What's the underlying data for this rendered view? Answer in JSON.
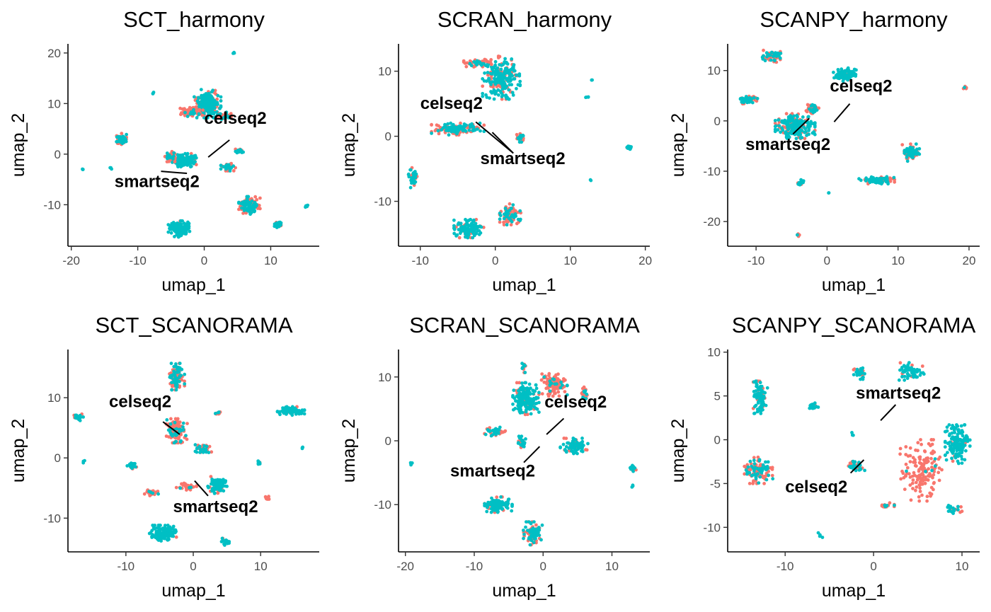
{
  "colors": {
    "celseq2": "#F8766D",
    "smartseq2": "#00BFC4",
    "axis": "#000000",
    "tick_text": "#4D4D4D"
  },
  "chart_data": [
    {
      "type": "scatter",
      "title": "SCT_harmony",
      "xlabel": "umap_1",
      "ylabel": "umap_2",
      "xlim": [
        -20.5,
        17.3
      ],
      "ylim": [
        -18.2,
        21.8
      ],
      "xticks": [
        -20,
        -10,
        0,
        10
      ],
      "yticks": [
        -10,
        0,
        10,
        20
      ],
      "xtick_labels": [
        "-20",
        "-10",
        "0",
        "10"
      ],
      "ytick_labels": [
        "-10",
        "0",
        "10",
        "20"
      ],
      "grid": false,
      "labels": [
        {
          "text": "celseq2",
          "x": 0,
          "y": 6,
          "point": [
            3.8,
            2.8
          ],
          "line_to": [
            0.6,
            -0.6
          ]
        },
        {
          "text": "smartseq2",
          "x": -13.5,
          "y": -6.5,
          "point": [
            -6.5,
            -3.4
          ],
          "line_to": [
            -2.6,
            -3.8
          ]
        }
      ],
      "clusters": [
        {
          "x": -3.0,
          "y": -1.2,
          "rx": 1.8,
          "ry": 1.3,
          "mix": 0.8,
          "n": 160
        },
        {
          "x": -5.0,
          "y": -0.5,
          "rx": 0.9,
          "ry": 1.0,
          "mix": 0.3,
          "n": 40
        },
        {
          "x": 0.5,
          "y": 10.0,
          "rx": 2.0,
          "ry": 2.8,
          "mix": 0.75,
          "n": 230
        },
        {
          "x": -2.0,
          "y": 8.3,
          "rx": 1.8,
          "ry": 0.9,
          "mix": 0.2,
          "n": 70
        },
        {
          "x": 3.2,
          "y": 7.5,
          "rx": 1.2,
          "ry": 0.9,
          "mix": 0.25,
          "n": 40
        },
        {
          "x": 6.8,
          "y": -10.2,
          "rx": 1.6,
          "ry": 1.8,
          "mix": 0.5,
          "n": 120
        },
        {
          "x": -3.8,
          "y": -14.8,
          "rx": 1.6,
          "ry": 1.6,
          "mix": 0.9,
          "n": 140
        },
        {
          "x": -12.5,
          "y": 2.8,
          "rx": 0.8,
          "ry": 1.3,
          "mix": 0.5,
          "n": 60
        },
        {
          "x": 3.6,
          "y": -2.5,
          "rx": 1.1,
          "ry": 0.8,
          "mix": 0.5,
          "n": 50
        },
        {
          "x": 5.3,
          "y": 0.6,
          "rx": 0.6,
          "ry": 0.5,
          "mix": 0.6,
          "n": 20
        },
        {
          "x": 11.2,
          "y": -13.9,
          "rx": 0.7,
          "ry": 0.6,
          "mix": 0.8,
          "n": 30
        },
        {
          "x": 15.5,
          "y": -10.2,
          "rx": 0.3,
          "ry": 0.4,
          "mix": 1.0,
          "n": 6
        },
        {
          "x": -7.6,
          "y": 12.0,
          "rx": 0.25,
          "ry": 0.25,
          "mix": 1.0,
          "n": 4
        },
        {
          "x": 4.5,
          "y": 20.0,
          "rx": 0.2,
          "ry": 0.2,
          "mix": 1.0,
          "n": 3
        },
        {
          "x": -14.0,
          "y": -2.8,
          "rx": 0.2,
          "ry": 0.3,
          "mix": 1.0,
          "n": 3
        },
        {
          "x": -18.3,
          "y": -2.9,
          "rx": 0.2,
          "ry": 0.2,
          "mix": 1.0,
          "n": 3
        }
      ]
    },
    {
      "type": "scatter",
      "title": "SCRAN_harmony",
      "xlabel": "umap_1",
      "ylabel": "umap_2",
      "xlim": [
        -12.9,
        20.6
      ],
      "ylim": [
        -16.9,
        14.2
      ],
      "xticks": [
        -10,
        0,
        10,
        20
      ],
      "yticks": [
        -10,
        0,
        10
      ],
      "xtick_labels": [
        "-10",
        "0",
        "10",
        "20"
      ],
      "ytick_labels": [
        "-10",
        "0",
        "10"
      ],
      "grid": false,
      "labels": [
        {
          "text": "celseq2",
          "x": -10.0,
          "y": 4.2,
          "point": [
            -2.6,
            2.2
          ],
          "line_to": [
            2.4,
            -2.6
          ]
        },
        {
          "text": "smartseq2",
          "x": -2.0,
          "y": -4.3,
          "point": [
            -0.4,
            0.6
          ],
          "line_to": [
            2.4,
            -2.6
          ]
        }
      ],
      "clusters": [
        {
          "x": 0.8,
          "y": 9.0,
          "rx": 2.5,
          "ry": 3.3,
          "mix": 0.75,
          "n": 240
        },
        {
          "x": -2.2,
          "y": 11.2,
          "rx": 2.0,
          "ry": 0.7,
          "mix": 0.2,
          "n": 60
        },
        {
          "x": -5.0,
          "y": 1.1,
          "rx": 3.5,
          "ry": 0.9,
          "mix": 0.6,
          "n": 150
        },
        {
          "x": 3.3,
          "y": -0.2,
          "rx": 0.6,
          "ry": 1.0,
          "mix": 0.5,
          "n": 30
        },
        {
          "x": -11.0,
          "y": -6.3,
          "rx": 0.7,
          "ry": 1.6,
          "mix": 0.6,
          "n": 40
        },
        {
          "x": -3.5,
          "y": -14.2,
          "rx": 2.0,
          "ry": 1.4,
          "mix": 0.8,
          "n": 120
        },
        {
          "x": 2.0,
          "y": -12.0,
          "rx": 1.4,
          "ry": 1.6,
          "mix": 0.4,
          "n": 90
        },
        {
          "x": 17.9,
          "y": -1.7,
          "rx": 0.5,
          "ry": 0.4,
          "mix": 0.8,
          "n": 20
        },
        {
          "x": 12.2,
          "y": 6.1,
          "rx": 0.2,
          "ry": 0.3,
          "mix": 1.0,
          "n": 4
        },
        {
          "x": 12.9,
          "y": 8.7,
          "rx": 0.15,
          "ry": 0.15,
          "mix": 1.0,
          "n": 2
        },
        {
          "x": 12.7,
          "y": -6.8,
          "rx": 0.15,
          "ry": 0.15,
          "mix": 1.0,
          "n": 2
        }
      ]
    },
    {
      "type": "scatter",
      "title": "SCANPY_harmony",
      "xlabel": "umap_1",
      "ylabel": "umap_2",
      "xlim": [
        -14.0,
        21.5
      ],
      "ylim": [
        -24.9,
        15.3
      ],
      "xticks": [
        -10,
        0,
        10,
        20
      ],
      "yticks": [
        -20,
        -10,
        0,
        10
      ],
      "xtick_labels": [
        "-10",
        "0",
        "10",
        "20"
      ],
      "ytick_labels": [
        "-20",
        "-10",
        "0",
        "10"
      ],
      "grid": false,
      "labels": [
        {
          "text": "celseq2",
          "x": 0.4,
          "y": 5.8,
          "point": [
            3.2,
            3.4
          ],
          "line_to": [
            1.0,
            -0.2
          ]
        },
        {
          "text": "smartseq2",
          "x": -11.5,
          "y": -5.8,
          "point": [
            -2.5,
            0.5
          ],
          "line_to": [
            -4.8,
            -2.6
          ]
        }
      ],
      "clusters": [
        {
          "x": -4.5,
          "y": -1.0,
          "rx": 2.8,
          "ry": 2.5,
          "mix": 0.7,
          "n": 240
        },
        {
          "x": -2.0,
          "y": 2.5,
          "rx": 1.0,
          "ry": 1.0,
          "mix": 0.3,
          "n": 40
        },
        {
          "x": 2.5,
          "y": 9.2,
          "rx": 1.6,
          "ry": 1.3,
          "mix": 0.8,
          "n": 120
        },
        {
          "x": -7.8,
          "y": 12.8,
          "rx": 1.5,
          "ry": 1.2,
          "mix": 0.4,
          "n": 60
        },
        {
          "x": -11.0,
          "y": 4.3,
          "rx": 1.2,
          "ry": 0.9,
          "mix": 0.7,
          "n": 50
        },
        {
          "x": 11.8,
          "y": -6.3,
          "rx": 1.2,
          "ry": 1.7,
          "mix": 0.7,
          "n": 80
        },
        {
          "x": 7.0,
          "y": -11.8,
          "rx": 2.5,
          "ry": 0.7,
          "mix": 0.6,
          "n": 90
        },
        {
          "x": -3.8,
          "y": -12.3,
          "rx": 0.5,
          "ry": 0.6,
          "mix": 0.7,
          "n": 20
        },
        {
          "x": 19.4,
          "y": 6.6,
          "rx": 0.3,
          "ry": 0.3,
          "mix": 0.3,
          "n": 6
        },
        {
          "x": -3.9,
          "y": -22.7,
          "rx": 0.3,
          "ry": 0.3,
          "mix": 0.5,
          "n": 5
        },
        {
          "x": 0.3,
          "y": -14.3,
          "rx": 0.15,
          "ry": 0.15,
          "mix": 1.0,
          "n": 2
        }
      ]
    },
    {
      "type": "scatter",
      "title": "SCT_SCANORAMA",
      "xlabel": "umap_1",
      "ylabel": "umap_2",
      "xlim": [
        -18.6,
        18.7
      ],
      "ylim": [
        -15.6,
        18.0
      ],
      "xticks": [
        -10,
        0,
        10
      ],
      "yticks": [
        -10,
        0,
        10
      ],
      "xtick_labels": [
        "-10",
        "0",
        "10"
      ],
      "ytick_labels": [
        "-10",
        "0",
        "10"
      ],
      "grid": false,
      "labels": [
        {
          "text": "celseq2",
          "x": -12.5,
          "y": 8.4,
          "point": [
            -4.5,
            6.0
          ],
          "line_to": [
            -2.0,
            3.9
          ]
        },
        {
          "text": "smartseq2",
          "x": -3.0,
          "y": -9.0,
          "point": [
            0.2,
            -3.8
          ],
          "line_to": [
            2.2,
            -6.3
          ]
        }
      ],
      "clusters": [
        {
          "x": -2.5,
          "y": 4.5,
          "rx": 1.6,
          "ry": 2.0,
          "mix": 0.2,
          "n": 120
        },
        {
          "x": -2.5,
          "y": 13.5,
          "rx": 1.2,
          "ry": 2.2,
          "mix": 0.5,
          "n": 90
        },
        {
          "x": 3.5,
          "y": -4.5,
          "rx": 1.5,
          "ry": 1.4,
          "mix": 0.8,
          "n": 100
        },
        {
          "x": -1.0,
          "y": -4.8,
          "rx": 1.5,
          "ry": 0.6,
          "mix": 0.1,
          "n": 30
        },
        {
          "x": -4.5,
          "y": -12.5,
          "rx": 2.0,
          "ry": 1.3,
          "mix": 0.95,
          "n": 150
        },
        {
          "x": 14.5,
          "y": 7.8,
          "rx": 2.0,
          "ry": 0.7,
          "mix": 0.8,
          "n": 90
        },
        {
          "x": -17.0,
          "y": 6.8,
          "rx": 0.7,
          "ry": 0.6,
          "mix": 0.7,
          "n": 20
        },
        {
          "x": -9.0,
          "y": -1.3,
          "rx": 0.9,
          "ry": 0.6,
          "mix": 0.6,
          "n": 30
        },
        {
          "x": 1.5,
          "y": 1.5,
          "rx": 1.2,
          "ry": 0.8,
          "mix": 0.4,
          "n": 40
        },
        {
          "x": -6.0,
          "y": -5.8,
          "rx": 1.3,
          "ry": 0.5,
          "mix": 0.1,
          "n": 30
        },
        {
          "x": 3.6,
          "y": 7.3,
          "rx": 0.5,
          "ry": 0.4,
          "mix": 0.5,
          "n": 10
        },
        {
          "x": 4.8,
          "y": -13.9,
          "rx": 0.6,
          "ry": 0.7,
          "mix": 0.9,
          "n": 20
        },
        {
          "x": 9.8,
          "y": -0.8,
          "rx": 0.3,
          "ry": 0.5,
          "mix": 0.8,
          "n": 8
        },
        {
          "x": 10.8,
          "y": -6.7,
          "rx": 0.8,
          "ry": 0.3,
          "mix": 0.1,
          "n": 10
        },
        {
          "x": 16.2,
          "y": 1.7,
          "rx": 0.2,
          "ry": 0.3,
          "mix": 1.0,
          "n": 4
        },
        {
          "x": -16.2,
          "y": -0.7,
          "rx": 0.2,
          "ry": 0.3,
          "mix": 1.0,
          "n": 3
        }
      ]
    },
    {
      "type": "scatter",
      "title": "SCRAN_SCANORAMA",
      "xlabel": "umap_1",
      "ylabel": "umap_2",
      "xlim": [
        -21.0,
        15.5
      ],
      "ylim": [
        -17.4,
        14.3
      ],
      "xticks": [
        -20,
        -10,
        0,
        10
      ],
      "yticks": [
        -10,
        0,
        10
      ],
      "xtick_labels": [
        "-20",
        "-10",
        "0",
        "10"
      ],
      "ytick_labels": [
        "-10",
        "0",
        "10"
      ],
      "grid": false,
      "labels": [
        {
          "text": "celseq2",
          "x": 0.2,
          "y": 5.2,
          "point": [
            3.0,
            3.5
          ],
          "line_to": [
            0.5,
            1.0
          ]
        },
        {
          "text": "smartseq2",
          "x": -13.5,
          "y": -5.6,
          "point": [
            -2.8,
            -3.4
          ],
          "line_to": [
            -0.5,
            -0.9
          ]
        }
      ],
      "clusters": [
        {
          "x": -2.5,
          "y": 6.5,
          "rx": 1.9,
          "ry": 2.6,
          "mix": 0.8,
          "n": 200
        },
        {
          "x": 1.5,
          "y": 8.8,
          "rx": 2.0,
          "ry": 1.8,
          "mix": 0.2,
          "n": 110
        },
        {
          "x": 4.5,
          "y": -0.8,
          "rx": 2.0,
          "ry": 1.2,
          "mix": 0.8,
          "n": 90
        },
        {
          "x": -6.5,
          "y": -10.0,
          "rx": 2.0,
          "ry": 1.2,
          "mix": 0.8,
          "n": 100
        },
        {
          "x": -1.5,
          "y": -14.5,
          "rx": 1.5,
          "ry": 1.8,
          "mix": 0.5,
          "n": 90
        },
        {
          "x": -7.0,
          "y": 1.5,
          "rx": 1.5,
          "ry": 0.8,
          "mix": 0.5,
          "n": 40
        },
        {
          "x": -3.0,
          "y": -0.3,
          "rx": 0.6,
          "ry": 1.0,
          "mix": 0.6,
          "n": 30
        },
        {
          "x": 6.0,
          "y": 7.5,
          "rx": 0.6,
          "ry": 0.9,
          "mix": 0.3,
          "n": 20
        },
        {
          "x": -2.8,
          "y": 11.5,
          "rx": 0.5,
          "ry": 0.8,
          "mix": 0.6,
          "n": 15
        },
        {
          "x": 13.0,
          "y": -4.3,
          "rx": 0.5,
          "ry": 0.6,
          "mix": 0.8,
          "n": 20
        },
        {
          "x": -19.2,
          "y": -3.6,
          "rx": 0.3,
          "ry": 0.3,
          "mix": 1.0,
          "n": 4
        },
        {
          "x": 13.0,
          "y": -7.1,
          "rx": 0.15,
          "ry": 0.2,
          "mix": 1.0,
          "n": 3
        }
      ]
    },
    {
      "type": "scatter",
      "title": "SCANPY_SCANORAMA",
      "xlabel": "umap_1",
      "ylabel": "umap_2",
      "xlim": [
        -16.5,
        12.0
      ],
      "ylim": [
        -12.8,
        10.3
      ],
      "xticks": [
        -10,
        0,
        10
      ],
      "yticks": [
        -10,
        -5,
        0,
        5,
        10
      ],
      "xtick_labels": [
        "-10",
        "0",
        "10"
      ],
      "ytick_labels": [
        "-10",
        "-5",
        "0",
        "5",
        "10"
      ],
      "grid": false,
      "labels": [
        {
          "text": "smartseq2",
          "x": -2.0,
          "y": 4.7,
          "point": [
            2.5,
            4.0
          ],
          "line_to": [
            0.8,
            2.2
          ]
        },
        {
          "text": "celseq2",
          "x": -10.0,
          "y": -6.0,
          "point": [
            -2.6,
            -3.8
          ],
          "line_to": [
            -1.1,
            -2.3
          ]
        }
      ],
      "clusters": [
        {
          "x": -12.8,
          "y": 5.0,
          "rx": 0.8,
          "ry": 2.0,
          "mix": 0.85,
          "n": 100
        },
        {
          "x": -13.0,
          "y": -3.5,
          "rx": 1.6,
          "ry": 1.5,
          "mix": 0.5,
          "n": 110
        },
        {
          "x": -6.8,
          "y": 3.8,
          "rx": 0.6,
          "ry": 0.5,
          "mix": 0.8,
          "n": 20
        },
        {
          "x": -1.5,
          "y": 7.7,
          "rx": 0.8,
          "ry": 0.8,
          "mix": 0.8,
          "n": 30
        },
        {
          "x": 4.3,
          "y": 7.8,
          "rx": 1.4,
          "ry": 1.0,
          "mix": 0.8,
          "n": 60
        },
        {
          "x": 9.5,
          "y": -0.5,
          "rx": 1.4,
          "ry": 2.2,
          "mix": 0.95,
          "n": 160
        },
        {
          "x": 5.5,
          "y": -3.5,
          "rx": 2.5,
          "ry": 3.5,
          "mix": 0.05,
          "n": 150
        },
        {
          "x": -2.0,
          "y": -3.0,
          "rx": 1.0,
          "ry": 0.7,
          "mix": 0.5,
          "n": 40
        },
        {
          "x": 1.5,
          "y": -7.5,
          "rx": 1.0,
          "ry": 0.3,
          "mix": 0.1,
          "n": 15
        },
        {
          "x": 9.0,
          "y": -8.0,
          "rx": 1.0,
          "ry": 0.5,
          "mix": 0.7,
          "n": 20
        },
        {
          "x": -6.0,
          "y": -11.0,
          "rx": 0.3,
          "ry": 0.5,
          "mix": 1.0,
          "n": 5
        },
        {
          "x": -2.5,
          "y": 0.7,
          "rx": 0.2,
          "ry": 0.3,
          "mix": 1.0,
          "n": 3
        }
      ]
    }
  ]
}
